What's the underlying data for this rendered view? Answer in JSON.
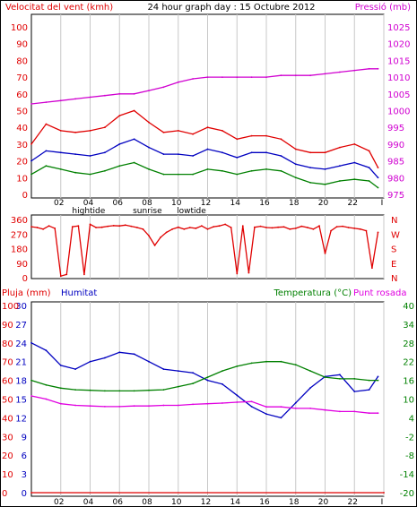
{
  "header": {
    "wind_title": "Velocitat del vent (kmh)",
    "graph_title": "24 hour graph day : 15 Octubre 2012",
    "pressure_title": "Pressió (mb)"
  },
  "bottom_header": {
    "rain_title": "Pluja (mm)",
    "humidity_title": "Humitat",
    "temperature_title": "Temperatura (°C)",
    "dewpoint_title": "Punt rosada"
  },
  "colors": {
    "wind": "#e00000",
    "wind_avg": "#0000c0",
    "wind_min": "#008000",
    "pressure": "#d000d0",
    "direction": "#e00000",
    "rain": "#e00000",
    "humidity": "#0000c0",
    "temperature": "#008000",
    "dewpoint": "#e000e0"
  },
  "x_axis": {
    "tick_labels": [
      "02",
      "04",
      "06",
      "08",
      "10",
      "12",
      "14",
      "16",
      "18",
      "20",
      "22",
      "I"
    ],
    "events": [
      {
        "label": "hightide",
        "hour": 3.9
      },
      {
        "label": "sunrise",
        "hour": 7.9
      },
      {
        "label": "lowtide",
        "hour": 10.9
      }
    ]
  },
  "chart_data": [
    {
      "type": "line",
      "title": "Velocitat del vent (kmh) / Pressió (mb)",
      "x_range": [
        0,
        24
      ],
      "y_left": {
        "label": "Velocitat del vent (kmh)",
        "min": 0,
        "max": 100,
        "ticks": [
          0,
          10,
          20,
          30,
          40,
          50,
          60,
          70,
          80,
          90,
          100
        ]
      },
      "y_right": {
        "label": "Pressió (mb)",
        "min": 975,
        "max": 1025,
        "ticks": [
          975,
          980,
          985,
          990,
          995,
          1000,
          1005,
          1010,
          1015,
          1020,
          1025
        ]
      },
      "grid": "vertical",
      "series": [
        {
          "name": "gust",
          "axis": "left",
          "color": "#e00000",
          "x": [
            0,
            1,
            2,
            3,
            4,
            5,
            6,
            7,
            8,
            9,
            10,
            11,
            12,
            13,
            14,
            15,
            16,
            17,
            18,
            19,
            20,
            21,
            22,
            23,
            23.6
          ],
          "y": [
            30,
            42,
            38,
            37,
            38,
            40,
            47,
            50,
            43,
            37,
            38,
            36,
            40,
            38,
            33,
            35,
            35,
            33,
            27,
            25,
            25,
            28,
            30,
            26,
            16
          ]
        },
        {
          "name": "average",
          "axis": "left",
          "color": "#0000c0",
          "x": [
            0,
            1,
            2,
            3,
            4,
            5,
            6,
            7,
            8,
            9,
            10,
            11,
            12,
            13,
            14,
            15,
            16,
            17,
            18,
            19,
            20,
            21,
            22,
            23,
            23.6
          ],
          "y": [
            20,
            26,
            25,
            24,
            23,
            25,
            30,
            33,
            28,
            24,
            24,
            23,
            27,
            25,
            22,
            25,
            25,
            23,
            18,
            16,
            15,
            17,
            19,
            16,
            10
          ]
        },
        {
          "name": "minimum",
          "axis": "left",
          "color": "#008000",
          "x": [
            0,
            1,
            2,
            3,
            4,
            5,
            6,
            7,
            8,
            9,
            10,
            11,
            12,
            13,
            14,
            15,
            16,
            17,
            18,
            19,
            20,
            21,
            22,
            23,
            23.6
          ],
          "y": [
            12,
            17,
            15,
            13,
            12,
            14,
            17,
            19,
            15,
            12,
            12,
            12,
            15,
            14,
            12,
            14,
            15,
            14,
            10,
            7,
            6,
            8,
            9,
            8,
            4
          ]
        },
        {
          "name": "Pressió (mb)",
          "axis": "right",
          "color": "#d000d0",
          "x": [
            0,
            1,
            2,
            3,
            4,
            5,
            6,
            7,
            8,
            9,
            10,
            11,
            12,
            13,
            14,
            15,
            16,
            17,
            18,
            19,
            20,
            21,
            22,
            23,
            23.6
          ],
          "y": [
            1002,
            1002.5,
            1003,
            1003.5,
            1004,
            1004.5,
            1005,
            1005,
            1006,
            1007,
            1008.5,
            1009.5,
            1010,
            1010,
            1010,
            1010,
            1010,
            1010.5,
            1010.5,
            1010.5,
            1011,
            1011.5,
            1012,
            1012.5,
            1012.5
          ]
        }
      ]
    },
    {
      "type": "line",
      "title": "Direcció del vent",
      "x_range": [
        0,
        24
      ],
      "y_left": {
        "min": 0,
        "max": 360,
        "ticks": [
          0,
          90,
          180,
          270,
          360
        ]
      },
      "y_right": {
        "labels": [
          "N",
          "W",
          "S",
          "E",
          "N"
        ],
        "values": [
          360,
          270,
          180,
          90,
          0
        ]
      },
      "series": [
        {
          "name": "direction",
          "color": "#e00000",
          "x": [
            0,
            0.4,
            0.8,
            1.2,
            1.6,
            2.0,
            2.4,
            2.8,
            3.2,
            3.6,
            4.0,
            4.4,
            4.8,
            5.2,
            5.6,
            6.0,
            6.4,
            6.8,
            7.2,
            7.6,
            8.0,
            8.4,
            8.8,
            9.2,
            9.6,
            10.0,
            10.4,
            10.8,
            11.2,
            11.6,
            12.0,
            12.4,
            12.8,
            13.2,
            13.6,
            14.0,
            14.4,
            14.8,
            15.2,
            15.6,
            16.0,
            16.4,
            16.8,
            17.2,
            17.6,
            18.0,
            18.4,
            18.8,
            19.2,
            19.6,
            20.0,
            20.4,
            20.8,
            21.2,
            21.6,
            22.0,
            22.4,
            22.8,
            23.2,
            23.6
          ],
          "y": [
            315,
            310,
            300,
            320,
            305,
            10,
            20,
            315,
            320,
            20,
            330,
            310,
            312,
            318,
            322,
            320,
            325,
            318,
            310,
            300,
            260,
            200,
            250,
            280,
            300,
            312,
            300,
            310,
            305,
            320,
            300,
            315,
            320,
            330,
            310,
            25,
            320,
            30,
            312,
            318,
            310,
            308,
            312,
            314,
            300,
            305,
            318,
            310,
            300,
            320,
            150,
            290,
            315,
            318,
            310,
            305,
            300,
            290,
            60,
            280
          ]
        }
      ]
    },
    {
      "type": "line",
      "title": "Pluja (mm) / Humitat / Temperatura (°C) / Punt rosada",
      "x_range": [
        0,
        24
      ],
      "y_left_rain": {
        "label": "Pluja (mm)",
        "min": 0,
        "max": 30,
        "ticks": [
          0,
          3,
          6,
          9,
          12,
          15,
          18,
          21,
          24,
          27,
          30
        ]
      },
      "y_left_humidity": {
        "label": "Humitat",
        "min": 0,
        "max": 100,
        "ticks": [
          0,
          10,
          20,
          30,
          40,
          50,
          60,
          70,
          80,
          90,
          100
        ]
      },
      "y_right": {
        "label": "Temperatura (°C)",
        "min": -20,
        "max": 40,
        "ticks": [
          -20,
          -14,
          -8,
          -2,
          4,
          10,
          16,
          22,
          28,
          34,
          40
        ]
      },
      "series": [
        {
          "name": "Pluja (mm)",
          "axis": "rain",
          "color": "#e00000",
          "x": [
            0,
            24
          ],
          "y": [
            0,
            0
          ]
        },
        {
          "name": "Humitat",
          "axis": "humidity",
          "color": "#0000c0",
          "x": [
            0,
            1,
            2,
            3,
            4,
            5,
            6,
            7,
            8,
            9,
            10,
            11,
            12,
            13,
            14,
            15,
            16,
            17,
            18,
            19,
            20,
            21,
            22,
            23,
            23.6
          ],
          "y": [
            80,
            76,
            68,
            66,
            70,
            72,
            75,
            74,
            70,
            66,
            65,
            64,
            60,
            58,
            52,
            46,
            42,
            40,
            48,
            56,
            62,
            63,
            54,
            55,
            62
          ]
        },
        {
          "name": "Temperatura (°C)",
          "axis": "right",
          "color": "#008000",
          "x": [
            0,
            1,
            2,
            3,
            4,
            5,
            6,
            7,
            8,
            9,
            10,
            11,
            12,
            13,
            14,
            15,
            16,
            17,
            18,
            19,
            20,
            21,
            22,
            23,
            23.6
          ],
          "y": [
            16,
            14.5,
            13.5,
            13,
            12.8,
            12.6,
            12.6,
            12.6,
            12.8,
            13,
            14,
            15,
            17,
            19,
            20.5,
            21.5,
            22,
            22,
            21,
            19,
            17,
            16.5,
            16.5,
            16,
            16
          ]
        },
        {
          "name": "Punt rosada",
          "axis": "right",
          "color": "#e000e0",
          "x": [
            0,
            1,
            2,
            3,
            4,
            5,
            6,
            7,
            8,
            9,
            10,
            11,
            12,
            13,
            14,
            15,
            16,
            17,
            18,
            19,
            20,
            21,
            22,
            23,
            23.6
          ],
          "y": [
            11,
            10,
            8.5,
            8,
            7.8,
            7.6,
            7.6,
            7.8,
            7.8,
            8,
            8,
            8.3,
            8.5,
            8.7,
            9,
            9.2,
            7.5,
            7.5,
            7,
            7,
            6.5,
            6,
            6,
            5.5,
            5.5
          ]
        }
      ]
    }
  ]
}
